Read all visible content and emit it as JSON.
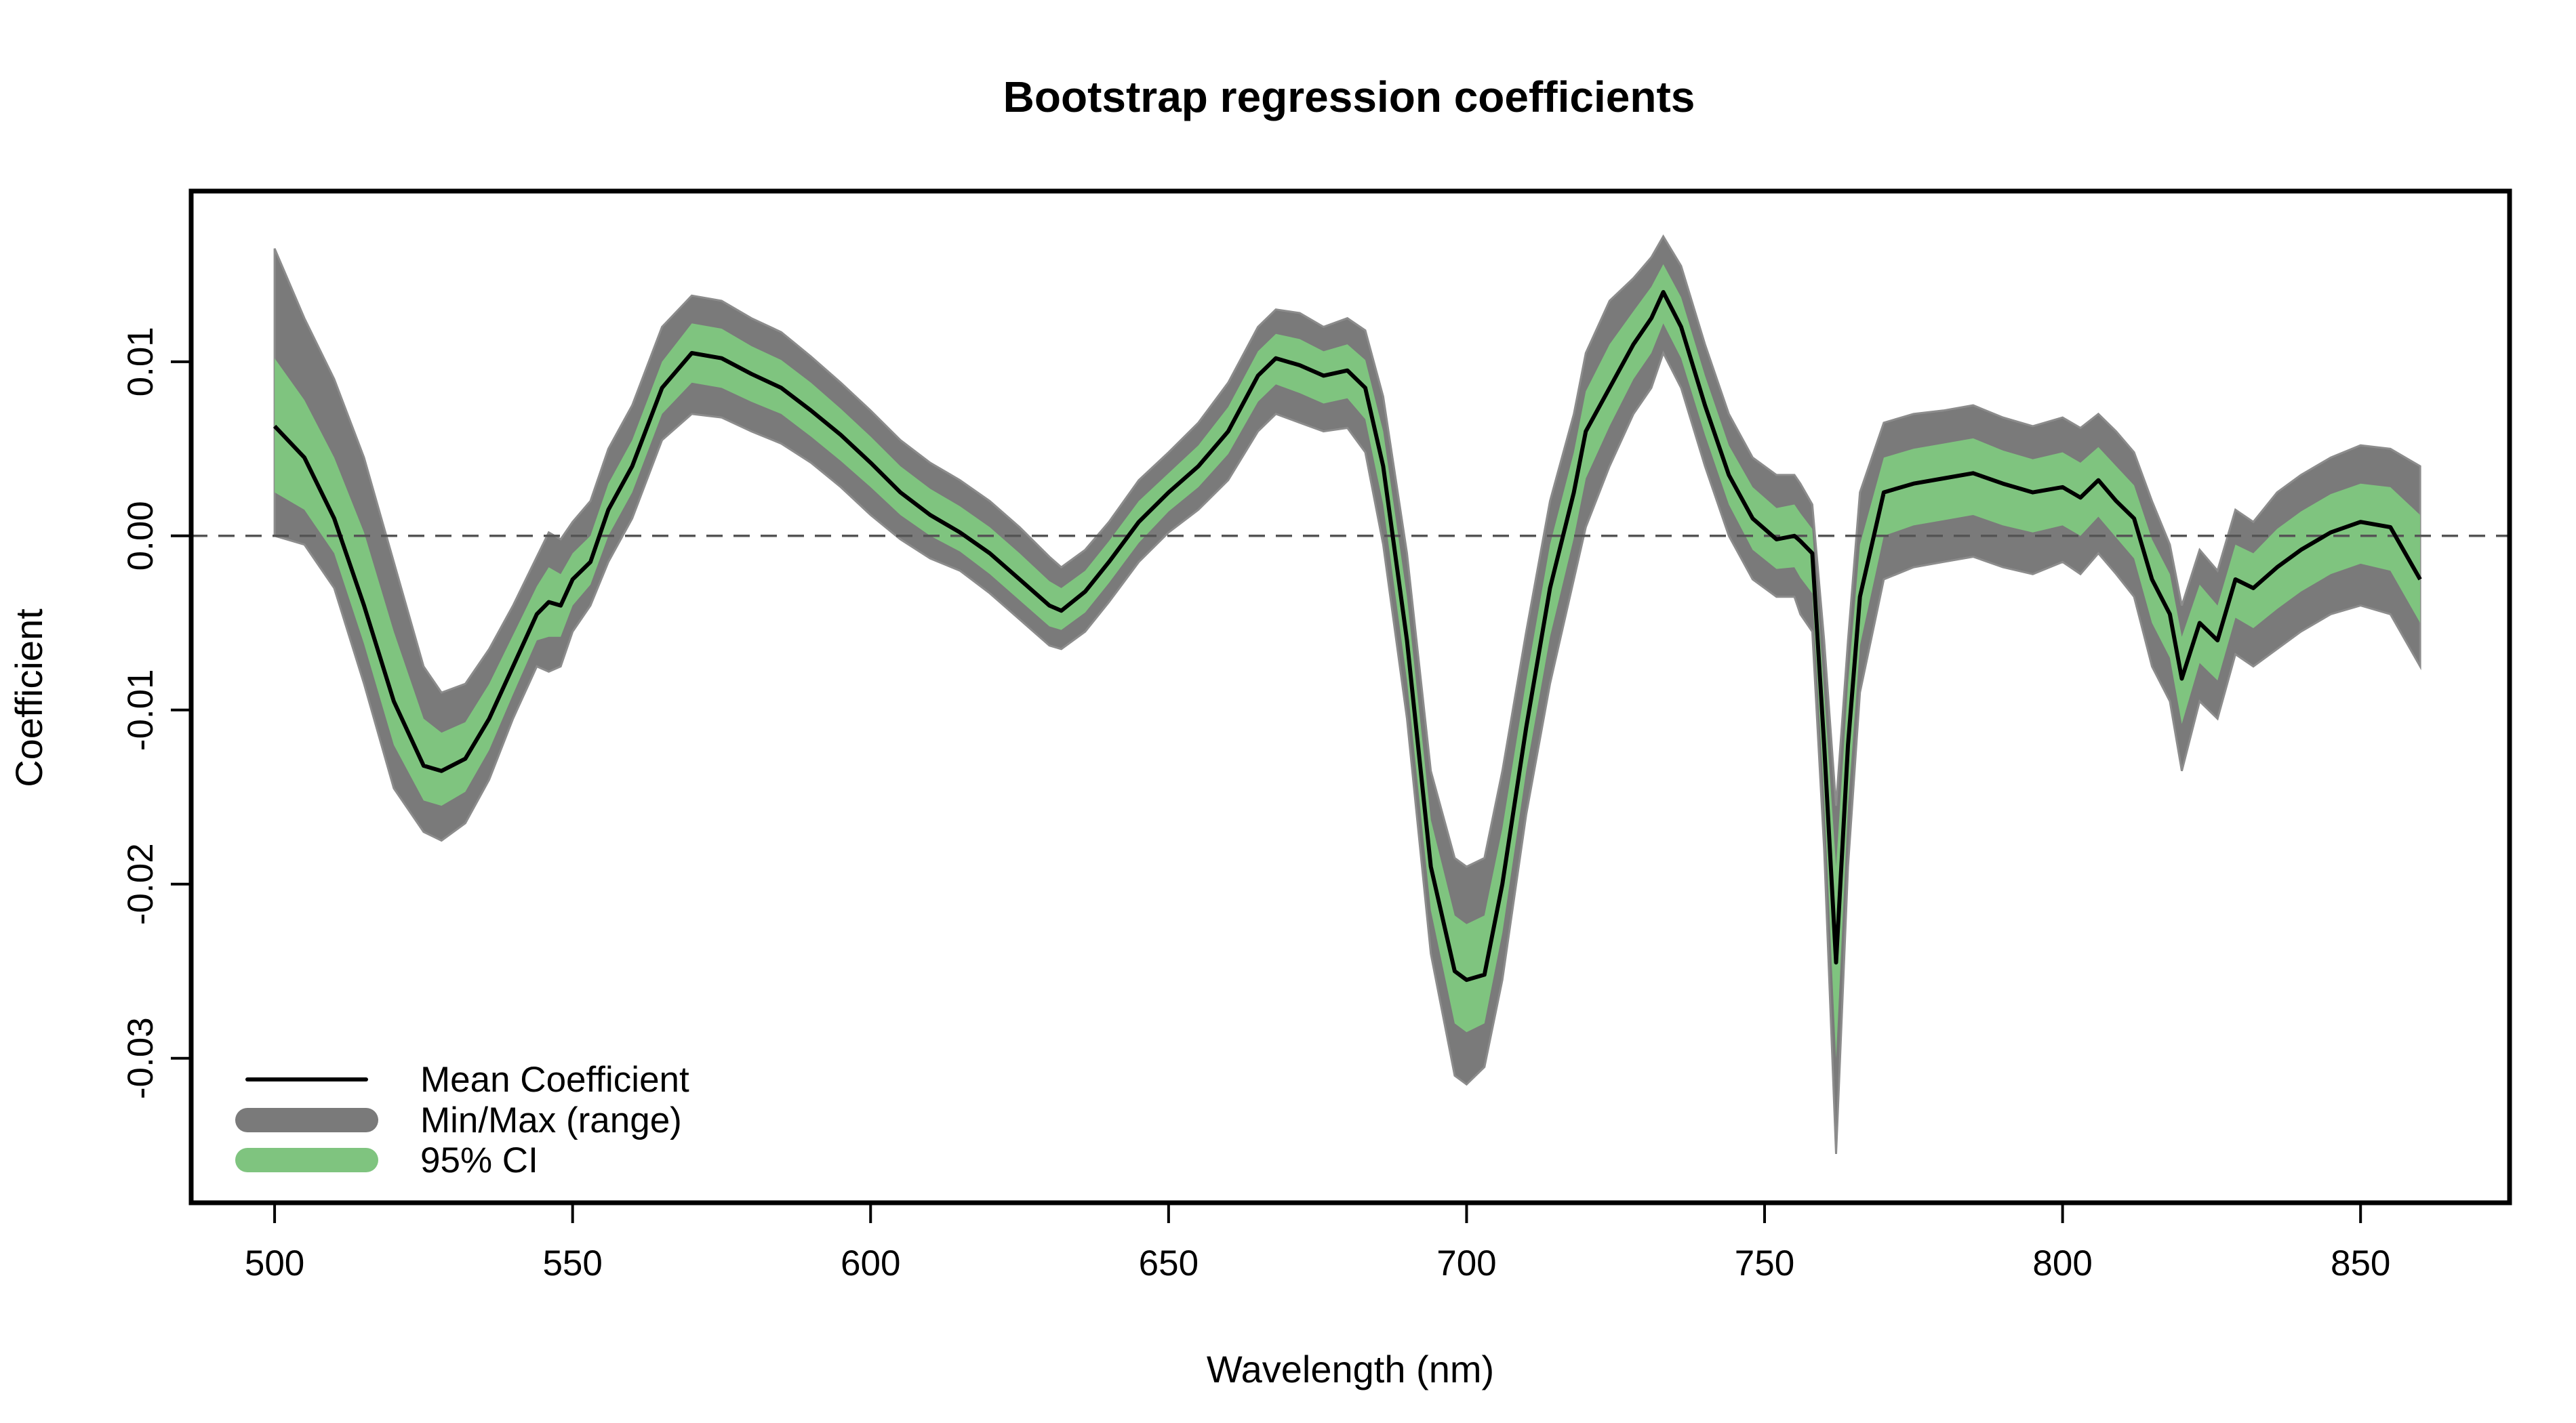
{
  "chart_data": {
    "type": "line",
    "title": "Bootstrap regression coefficients",
    "xlabel": "Wavelength (nm)",
    "ylabel": "Coefficient",
    "xlim": [
      486,
      875
    ],
    "ylim": [
      -0.0383,
      0.0198
    ],
    "xticks": [
      500,
      550,
      600,
      650,
      700,
      750,
      800,
      850
    ],
    "yticks": [
      -0.03,
      -0.02,
      -0.01,
      0.0,
      0.01
    ],
    "ytick_labels": [
      "-0.03",
      "-0.02",
      "-0.01",
      "0.00",
      "0.01"
    ],
    "reference_line": {
      "y": 0,
      "style": "dashed"
    },
    "grid": false,
    "legend": {
      "position": "bottom-left",
      "entries": [
        {
          "label": "Mean Coefficient",
          "color": "#000000"
        },
        {
          "label": "Min/Max (range)",
          "color": "#7a7a7a"
        },
        {
          "label": "95% CI",
          "color": "#7fc47f"
        }
      ]
    },
    "colors": {
      "mean": "#000000",
      "range": "#7a7a7a",
      "ci": "#7fc47f",
      "zero_line": "#555555"
    },
    "x": [
      500,
      505,
      510,
      515,
      520,
      525,
      528,
      532,
      536,
      540,
      544,
      546,
      548,
      550,
      553,
      556,
      560,
      565,
      570,
      575,
      580,
      585,
      590,
      595,
      600,
      605,
      610,
      615,
      620,
      625,
      630,
      632,
      636,
      640,
      645,
      650,
      655,
      660,
      665,
      668,
      672,
      676,
      680,
      683,
      686,
      690,
      694,
      698,
      700,
      703,
      706,
      710,
      714,
      718,
      720,
      724,
      728,
      731,
      733,
      736,
      740,
      744,
      748,
      752,
      755,
      756,
      758,
      760,
      762,
      764,
      766,
      770,
      775,
      780,
      785,
      790,
      795,
      800,
      803,
      806,
      809,
      812,
      815,
      818,
      820,
      823,
      826,
      829,
      832,
      836,
      840,
      845,
      850,
      855,
      860
    ],
    "series": [
      {
        "name": "Mean Coefficient",
        "values": [
          0.0063,
          0.0045,
          0.001,
          -0.004,
          -0.0095,
          -0.0132,
          -0.0135,
          -0.0128,
          -0.0105,
          -0.0075,
          -0.0045,
          -0.0038,
          -0.004,
          -0.0025,
          -0.0015,
          0.0015,
          0.004,
          0.0085,
          0.0105,
          0.0102,
          0.0093,
          0.0085,
          0.0072,
          0.0058,
          0.0042,
          0.0025,
          0.0012,
          0.0002,
          -0.001,
          -0.0025,
          -0.004,
          -0.0043,
          -0.0032,
          -0.0015,
          0.0008,
          0.0025,
          0.004,
          0.006,
          0.0092,
          0.0102,
          0.0098,
          0.0092,
          0.0095,
          0.0085,
          0.004,
          -0.006,
          -0.019,
          -0.025,
          -0.0255,
          -0.0252,
          -0.02,
          -0.011,
          -0.003,
          0.0025,
          0.006,
          0.0085,
          0.011,
          0.0125,
          0.014,
          0.012,
          0.0075,
          0.0035,
          0.001,
          -0.0002,
          0.0,
          -0.0003,
          -0.001,
          -0.012,
          -0.0245,
          -0.012,
          -0.0035,
          0.0025,
          0.003,
          0.0033,
          0.0036,
          0.003,
          0.0025,
          0.0028,
          0.0022,
          0.0032,
          0.002,
          0.001,
          -0.0025,
          -0.0045,
          -0.0082,
          -0.005,
          -0.006,
          -0.0025,
          -0.003,
          -0.0018,
          -0.0008,
          0.0002,
          0.0008,
          0.0005,
          -0.0025
        ]
      },
      {
        "name": "Min/Max (range)",
        "type": "band",
        "lower": [
          0.0,
          -0.0005,
          -0.003,
          -0.0085,
          -0.0145,
          -0.017,
          -0.0175,
          -0.0165,
          -0.014,
          -0.0105,
          -0.0075,
          -0.0078,
          -0.0075,
          -0.0055,
          -0.004,
          -0.0015,
          0.001,
          0.0055,
          0.007,
          0.0068,
          0.006,
          0.0053,
          0.0042,
          0.0028,
          0.0012,
          -0.0002,
          -0.0013,
          -0.002,
          -0.0033,
          -0.0048,
          -0.0063,
          -0.0065,
          -0.0055,
          -0.0038,
          -0.0015,
          0.0002,
          0.0015,
          0.0032,
          0.006,
          0.007,
          0.0065,
          0.006,
          0.0062,
          0.0048,
          -0.0005,
          -0.0105,
          -0.024,
          -0.031,
          -0.0315,
          -0.0305,
          -0.0255,
          -0.016,
          -0.0085,
          -0.0025,
          0.0005,
          0.004,
          0.007,
          0.0085,
          0.0105,
          0.0085,
          0.004,
          0.0,
          -0.0025,
          -0.0035,
          -0.0035,
          -0.0045,
          -0.0055,
          -0.018,
          -0.0355,
          -0.019,
          -0.009,
          -0.0025,
          -0.0018,
          -0.0015,
          -0.0012,
          -0.0018,
          -0.0022,
          -0.0015,
          -0.0022,
          -0.001,
          -0.0022,
          -0.0035,
          -0.0075,
          -0.0095,
          -0.0135,
          -0.0095,
          -0.0105,
          -0.0068,
          -0.0075,
          -0.0065,
          -0.0055,
          -0.0045,
          -0.004,
          -0.0045,
          -0.0075
        ],
        "upper": [
          0.0165,
          0.0125,
          0.009,
          0.0045,
          -0.0015,
          -0.0075,
          -0.009,
          -0.0085,
          -0.0065,
          -0.004,
          -0.0012,
          0.0002,
          -0.0002,
          0.0008,
          0.002,
          0.005,
          0.0075,
          0.012,
          0.0138,
          0.0135,
          0.0125,
          0.0117,
          0.0103,
          0.0088,
          0.0072,
          0.0055,
          0.0042,
          0.0032,
          0.002,
          0.0005,
          -0.0012,
          -0.0018,
          -0.0008,
          0.0008,
          0.0032,
          0.0048,
          0.0065,
          0.0088,
          0.012,
          0.013,
          0.0128,
          0.012,
          0.0125,
          0.0118,
          0.008,
          -0.001,
          -0.0135,
          -0.0185,
          -0.019,
          -0.0185,
          -0.0135,
          -0.0055,
          0.002,
          0.007,
          0.0105,
          0.0135,
          0.0148,
          0.016,
          0.0172,
          0.0155,
          0.011,
          0.007,
          0.0045,
          0.0035,
          0.0035,
          0.003,
          0.0018,
          -0.006,
          -0.0155,
          -0.006,
          0.0025,
          0.0065,
          0.007,
          0.0072,
          0.0075,
          0.0068,
          0.0063,
          0.0068,
          0.0062,
          0.007,
          0.006,
          0.0048,
          0.002,
          -0.0005,
          -0.004,
          -0.0008,
          -0.002,
          0.0015,
          0.0008,
          0.0025,
          0.0035,
          0.0045,
          0.0052,
          0.005,
          0.004
        ]
      },
      {
        "name": "95% CI",
        "type": "band",
        "lower": [
          0.0025,
          0.0015,
          -0.001,
          -0.0062,
          -0.012,
          -0.0152,
          -0.0155,
          -0.0147,
          -0.0123,
          -0.0091,
          -0.006,
          -0.0058,
          -0.0058,
          -0.004,
          -0.0028,
          0.0,
          0.0025,
          0.007,
          0.0088,
          0.0085,
          0.0077,
          0.007,
          0.0057,
          0.0043,
          0.0028,
          0.0012,
          0.0,
          -0.0009,
          -0.0022,
          -0.0037,
          -0.0052,
          -0.0054,
          -0.0044,
          -0.0027,
          -0.0004,
          0.0014,
          0.0028,
          0.0047,
          0.0077,
          0.0087,
          0.0082,
          0.0076,
          0.0079,
          0.0067,
          0.0018,
          -0.0083,
          -0.0215,
          -0.028,
          -0.0285,
          -0.028,
          -0.0228,
          -0.0135,
          -0.0058,
          -0.0001,
          0.0033,
          0.0063,
          0.009,
          0.0105,
          0.0122,
          0.0102,
          0.0058,
          0.0018,
          -0.0008,
          -0.0019,
          -0.0018,
          -0.0024,
          -0.0033,
          -0.015,
          -0.03,
          -0.0155,
          -0.0063,
          0.0,
          0.0006,
          0.0009,
          0.0012,
          0.0006,
          0.0002,
          0.0006,
          0.0,
          0.0011,
          -0.0001,
          -0.0013,
          -0.005,
          -0.007,
          -0.0108,
          -0.0073,
          -0.0083,
          -0.0047,
          -0.0053,
          -0.0042,
          -0.0032,
          -0.0022,
          -0.0016,
          -0.002,
          -0.005
        ],
        "upper": [
          0.0102,
          0.0078,
          0.0045,
          0.0002,
          -0.0055,
          -0.0105,
          -0.0113,
          -0.0107,
          -0.0085,
          -0.0057,
          -0.0029,
          -0.0018,
          -0.0022,
          -0.001,
          0.0,
          0.003,
          0.0055,
          0.01,
          0.0122,
          0.0119,
          0.0109,
          0.0101,
          0.0088,
          0.0073,
          0.0057,
          0.004,
          0.0027,
          0.0017,
          0.0005,
          -0.001,
          -0.0026,
          -0.003,
          -0.002,
          -0.0003,
          0.002,
          0.0036,
          0.0052,
          0.0074,
          0.0106,
          0.0116,
          0.0113,
          0.0106,
          0.011,
          0.0101,
          0.006,
          -0.0035,
          -0.0163,
          -0.0218,
          -0.0223,
          -0.0218,
          -0.0168,
          -0.0083,
          -0.0005,
          0.0048,
          0.0083,
          0.011,
          0.0129,
          0.0143,
          0.0156,
          0.0137,
          0.0092,
          0.0052,
          0.0028,
          0.0016,
          0.0018,
          0.0013,
          0.0004,
          -0.009,
          -0.019,
          -0.0085,
          -0.0005,
          0.0045,
          0.005,
          0.0053,
          0.0056,
          0.0049,
          0.0044,
          0.0048,
          0.0042,
          0.0051,
          0.004,
          0.0029,
          -0.0002,
          -0.0022,
          -0.0058,
          -0.0028,
          -0.004,
          -0.0005,
          -0.001,
          0.0004,
          0.0014,
          0.0024,
          0.003,
          0.0028,
          0.0012
        ]
      }
    ]
  }
}
